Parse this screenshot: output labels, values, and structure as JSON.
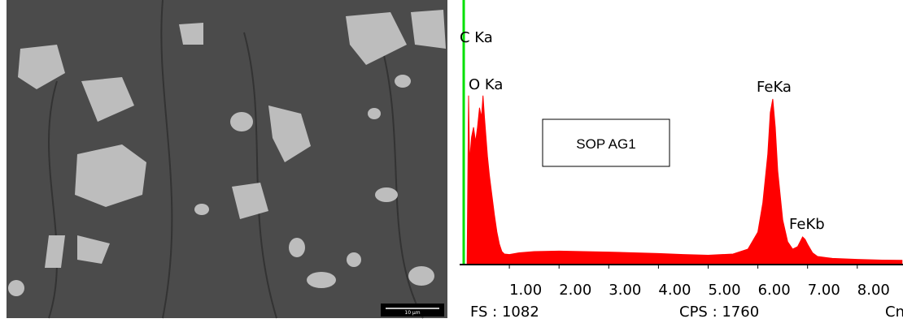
{
  "sem_image": {
    "scale_bar": "10 μm"
  },
  "chart_data": {
    "type": "area",
    "x": [
      0.15,
      0.18,
      0.2,
      0.24,
      0.28,
      0.32,
      0.36,
      0.4,
      0.44,
      0.47,
      0.5,
      0.53,
      0.56,
      0.6,
      0.65,
      0.7,
      0.75,
      0.8,
      0.85,
      0.9,
      1.0,
      1.2,
      1.5,
      2.0,
      2.5,
      3.0,
      3.5,
      4.0,
      4.5,
      5.0,
      5.5,
      5.8,
      6.0,
      6.1,
      6.2,
      6.25,
      6.3,
      6.35,
      6.4,
      6.5,
      6.6,
      6.7,
      6.8,
      6.9,
      6.95,
      7.0,
      7.1,
      7.2,
      7.5,
      8.0,
      8.5,
      8.9
    ],
    "values": [
      0,
      690,
      420,
      520,
      560,
      500,
      560,
      640,
      600,
      690,
      600,
      520,
      440,
      360,
      280,
      200,
      130,
      80,
      50,
      40,
      38,
      45,
      50,
      52,
      50,
      48,
      45,
      42,
      38,
      35,
      40,
      60,
      130,
      250,
      450,
      620,
      676,
      560,
      380,
      180,
      90,
      60,
      70,
      110,
      100,
      80,
      45,
      30,
      22,
      18,
      15,
      14
    ],
    "color": "#ff0000",
    "xlim": [
      0,
      8.92
    ],
    "ylim": [
      0,
      1082
    ],
    "xticks": [
      {
        "value": 1,
        "label": "1.00"
      },
      {
        "value": 2,
        "label": "2.00"
      },
      {
        "value": 3,
        "label": "3.00"
      },
      {
        "value": 4,
        "label": "4.00"
      },
      {
        "value": 5,
        "label": "5.00"
      },
      {
        "value": 6,
        "label": "6.00"
      },
      {
        "value": 7,
        "label": "7.00"
      },
      {
        "value": 8,
        "label": "8.00"
      }
    ],
    "annotations": [
      "C Ka",
      "O Ka",
      "FeKa",
      "FeKb",
      "SOP AG1"
    ],
    "footer": [
      "FS : 1082",
      "CPS : 1760",
      "Cnt"
    ]
  }
}
